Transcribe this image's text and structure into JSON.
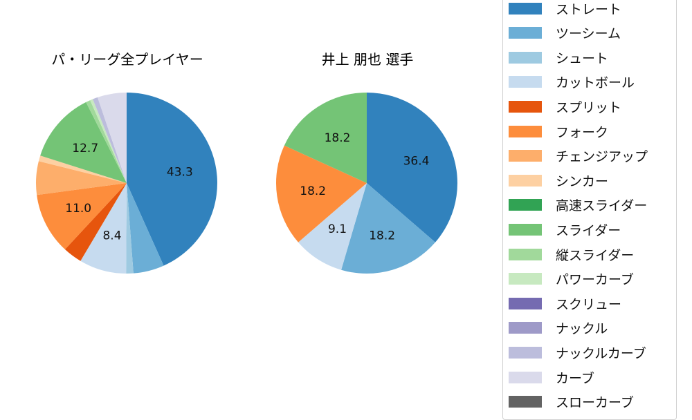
{
  "charts": [
    {
      "title": "パ・リーグ全プレイヤー"
    },
    {
      "title": "井上 朋也  選手"
    }
  ],
  "legend": {
    "items": [
      {
        "label": "ストレート",
        "color": "#3182bd"
      },
      {
        "label": "ツーシーム",
        "color": "#6baed6"
      },
      {
        "label": "シュート",
        "color": "#9ecae1"
      },
      {
        "label": "カットボール",
        "color": "#c6dbef"
      },
      {
        "label": "スプリット",
        "color": "#e6550d"
      },
      {
        "label": "フォーク",
        "color": "#fd8d3c"
      },
      {
        "label": "チェンジアップ",
        "color": "#fdae6b"
      },
      {
        "label": "シンカー",
        "color": "#fdd0a2"
      },
      {
        "label": "高速スライダー",
        "color": "#31a354"
      },
      {
        "label": "スライダー",
        "color": "#74c476"
      },
      {
        "label": "縦スライダー",
        "color": "#a1d99b"
      },
      {
        "label": "パワーカーブ",
        "color": "#c7e9c0"
      },
      {
        "label": "スクリュー",
        "color": "#756bb1"
      },
      {
        "label": "ナックル",
        "color": "#9e9ac8"
      },
      {
        "label": "ナックルカーブ",
        "color": "#bcbddc"
      },
      {
        "label": "カーブ",
        "color": "#dadaeb"
      },
      {
        "label": "スローカーブ",
        "color": "#636363"
      }
    ]
  },
  "chart_data": [
    {
      "type": "pie",
      "title": "パ・リーグ全プレイヤー",
      "start_angle": 90,
      "direction": "clockwise",
      "categories": [
        "ストレート",
        "ツーシーム",
        "シュート",
        "カットボール",
        "スプリット",
        "フォーク",
        "チェンジアップ",
        "シンカー",
        "スライダー",
        "縦スライダー",
        "パワーカーブ",
        "ナックルカーブ",
        "カーブ"
      ],
      "values": [
        43.3,
        5.5,
        1.3,
        8.4,
        3.4,
        11.0,
        6.0,
        1.0,
        12.7,
        0.8,
        0.5,
        0.9,
        5.2
      ],
      "colors": [
        "#3182bd",
        "#6baed6",
        "#9ecae1",
        "#c6dbef",
        "#e6550d",
        "#fd8d3c",
        "#fdae6b",
        "#fdd0a2",
        "#74c476",
        "#a1d99b",
        "#c7e9c0",
        "#bcbddc",
        "#dadaeb"
      ],
      "labels_shown": [
        "43.3",
        "",
        "",
        "8.4",
        "",
        "11.0",
        "",
        "",
        "12.7",
        "",
        "",
        "",
        ""
      ]
    },
    {
      "type": "pie",
      "title": "井上 朋也  選手",
      "start_angle": 90,
      "direction": "clockwise",
      "categories": [
        "ストレート",
        "ツーシーム",
        "カットボール",
        "フォーク",
        "スライダー"
      ],
      "values": [
        36.4,
        18.2,
        9.1,
        18.2,
        18.2
      ],
      "colors": [
        "#3182bd",
        "#6baed6",
        "#c6dbef",
        "#fd8d3c",
        "#74c476"
      ],
      "labels_shown": [
        "36.4",
        "18.2",
        "9.1",
        "18.2",
        "18.2"
      ]
    }
  ]
}
